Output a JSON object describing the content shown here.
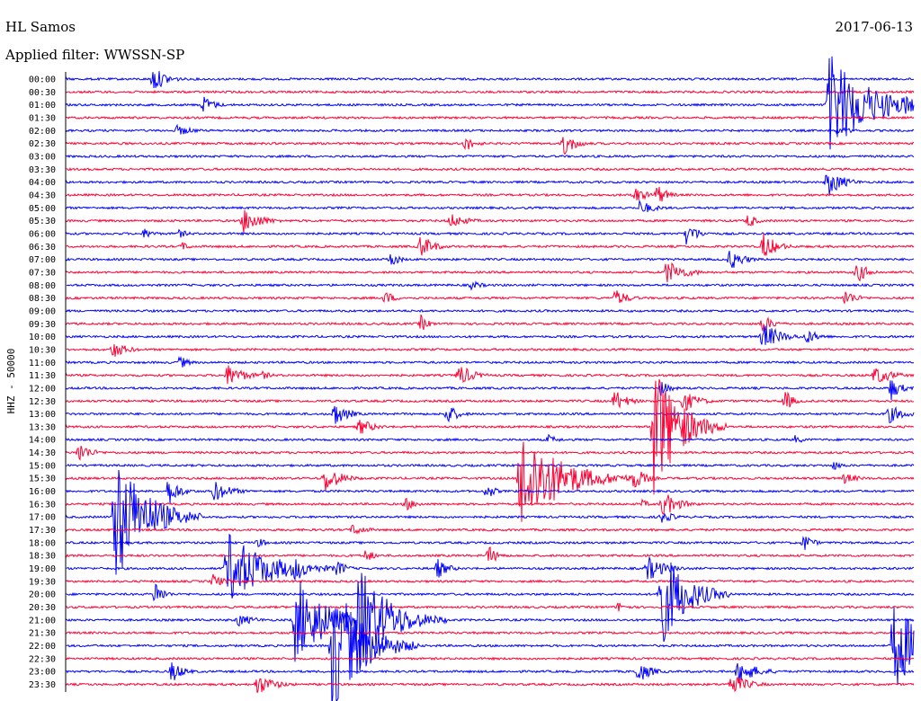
{
  "header": {
    "station": "HL Samos",
    "date": "2017-06-13",
    "filter": "Applied filter: WWSSN-SP"
  },
  "axis": {
    "channel_label": "HHZ - 50000"
  },
  "colors": {
    "trace_a": "#0000ff",
    "trace_b": "#ff0033",
    "axis": "#000000",
    "background": "#ffffff"
  },
  "chart_data": {
    "type": "line",
    "subtype": "helicorder",
    "title": "HL Samos",
    "ylabel": "HHZ - 50000",
    "trace_colors_alternate": [
      "#0000ff",
      "#ff0033"
    ],
    "rows": [
      "00:00",
      "00:30",
      "01:00",
      "01:30",
      "02:00",
      "02:30",
      "03:00",
      "03:30",
      "04:00",
      "04:30",
      "05:00",
      "05:30",
      "06:00",
      "06:30",
      "07:00",
      "07:30",
      "08:00",
      "08:30",
      "09:00",
      "09:30",
      "10:00",
      "10:30",
      "11:00",
      "11:30",
      "12:00",
      "12:30",
      "13:00",
      "13:30",
      "14:00",
      "14:30",
      "15:00",
      "15:30",
      "16:00",
      "16:30",
      "17:00",
      "17:30",
      "18:00",
      "18:30",
      "19:00",
      "19:30",
      "20:00",
      "20:30",
      "21:00",
      "21:30",
      "22:00",
      "22:30",
      "23:00",
      "23:30"
    ]
  }
}
